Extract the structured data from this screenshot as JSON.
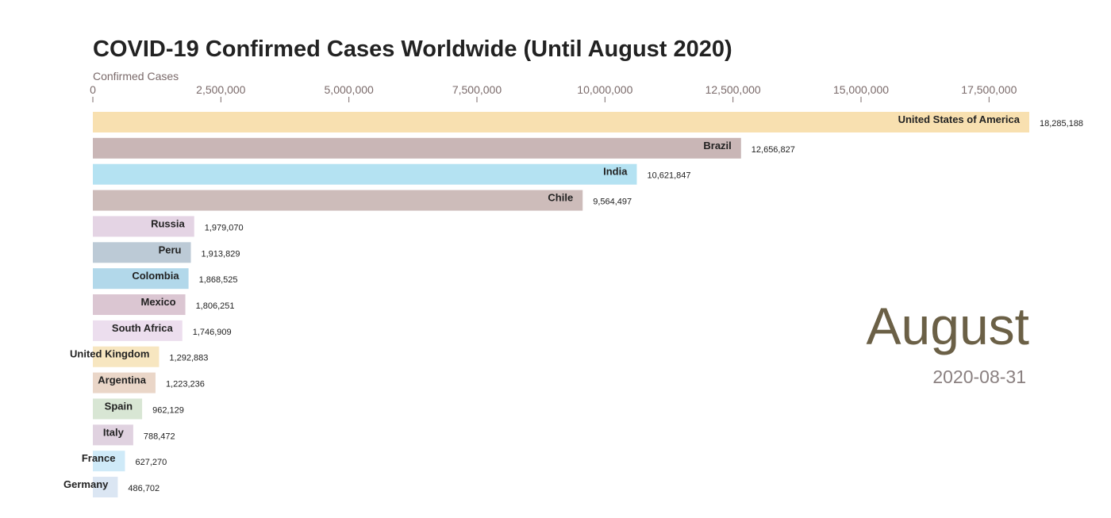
{
  "chart_data": {
    "type": "bar",
    "orientation": "horizontal",
    "title": "COVID-19 Confirmed Cases Worldwide (Until August 2020)",
    "xlabel": "Confirmed Cases",
    "ylabel": "",
    "xlim": [
      0,
      18285188
    ],
    "xticks": [
      0,
      2500000,
      5000000,
      7500000,
      10000000,
      12500000,
      15000000,
      17500000
    ],
    "xtick_labels": [
      "0",
      "2,500,000",
      "5,000,000",
      "7,500,000",
      "10,000,000",
      "12,500,000",
      "15,000,000",
      "17,500,000"
    ],
    "tick_position": "top",
    "grid": false,
    "categories": [
      "United States of America",
      "Brazil",
      "India",
      "Chile",
      "Russia",
      "Peru",
      "Colombia",
      "Mexico",
      "South Africa",
      "United Kingdom",
      "Argentina",
      "Spain",
      "Italy",
      "France",
      "Germany"
    ],
    "values": [
      18285188,
      12656827,
      10621847,
      9564497,
      1979070,
      1913829,
      1868525,
      1806251,
      1746909,
      1292883,
      1223236,
      962129,
      788472,
      627270,
      486702
    ],
    "value_labels": [
      "18,285,188",
      "12,656,827",
      "10,621,847",
      "9,564,497",
      "1,979,070",
      "1,913,829",
      "1,868,525",
      "1,806,251",
      "1,746,909",
      "1,292,883",
      "1,223,236",
      "962,129",
      "788,472",
      "627,270",
      "486,702"
    ],
    "colors": [
      "#f8e0b0",
      "#c9b6b6",
      "#b4e2f2",
      "#cdbcba",
      "#e4d4e4",
      "#bccad6",
      "#b2d8ea",
      "#dbc6d2",
      "#ecdeee",
      "#f7e6c0",
      "#ead6c8",
      "#d8e6d4",
      "#e0d2e0",
      "#cfeaf8",
      "#dbe6f3"
    ],
    "period_label": "August",
    "date_label": "2020-08-31"
  }
}
